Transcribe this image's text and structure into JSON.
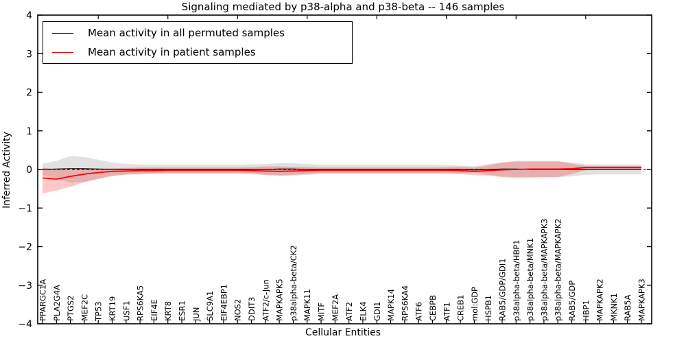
{
  "colors": {
    "permuted_line": "#000000",
    "patient_line": "#ff0000",
    "permuted_band": "rgba(120,120,120,0.22)",
    "patient_band": "rgba(255,0,0,0.22)",
    "axis": "#000000"
  },
  "legend": {
    "items": [
      {
        "label": "Mean activity in all permuted samples",
        "color": "#000000"
      },
      {
        "label": "Mean activity in patient samples",
        "color": "#ff0000"
      }
    ]
  },
  "chart_data": {
    "type": "line",
    "title": "Signaling mediated by p38-alpha and p38-beta -- 146 samples",
    "xlabel": "Cellular Entities",
    "ylabel": "Inferred Activity",
    "ylim": [
      -4,
      4
    ],
    "ytick_values": [
      4,
      3,
      2,
      1,
      0,
      -1,
      -2,
      -3,
      -4
    ],
    "ytick_labels": [
      "4",
      "3",
      "2",
      "1",
      "0",
      "−1",
      "−2",
      "−3",
      "−4"
    ],
    "grid": false,
    "legend_position": "upper left",
    "zero_line": 0,
    "categories": [
      "PPARGC1A",
      "PLA2G4A",
      "PTGS2",
      "MEF2C",
      "TP53",
      "KRT19",
      "USF1",
      "RPS6KA5",
      "EIF4E",
      "KRT8",
      "ESR1",
      "JUN",
      "SLC9A1",
      "EIF4EBP1",
      "NOS2",
      "DDIT3",
      "ATF2/c-Jun",
      "MAPKAPK5",
      "p38alpha-beta/CK2",
      "MAPK11",
      "MITF",
      "MEF2A",
      "ATF2",
      "ELK4",
      "GDI1",
      "MAPK14",
      "RPS6KA4",
      "ATF6",
      "CEBPB",
      "ATF1",
      "CREB1",
      "mol:GDP",
      "HSPB1",
      "RAB5/GDP/GDI1",
      "p38alpha-beta/HBP1",
      "p38alpha-beta/MNK1",
      "p38alpha-beta/MAPKAPK3",
      "p38alpha-beta/MAPKAPK2",
      "RAB5/GDP",
      "HBP1",
      "MAPKAPK2",
      "MKNK1",
      "RAB5A",
      "MAPKAPK3"
    ],
    "series": [
      {
        "name": "Mean activity in all permuted samples",
        "color": "#000000",
        "values": [
          0.0,
          0.01,
          0.02,
          0.02,
          0.01,
          0.0,
          0.0,
          0.0,
          0.0,
          0.0,
          0.0,
          0.0,
          0.0,
          0.0,
          0.0,
          0.0,
          0.0,
          0.01,
          0.01,
          0.0,
          0.0,
          0.0,
          0.0,
          0.0,
          0.0,
          0.0,
          0.0,
          0.0,
          0.0,
          0.0,
          0.0,
          -0.01,
          0.0,
          0.01,
          0.01,
          0.0,
          0.0,
          0.0,
          0.0,
          0.0,
          0.0,
          0.0,
          0.0,
          0.0
        ]
      },
      {
        "name": "Mean activity in patient samples",
        "color": "#ff0000",
        "values": [
          -0.22,
          -0.25,
          -0.18,
          -0.12,
          -0.08,
          -0.05,
          -0.04,
          -0.03,
          -0.03,
          -0.02,
          -0.02,
          -0.02,
          -0.02,
          -0.02,
          -0.02,
          -0.03,
          -0.04,
          -0.05,
          -0.04,
          -0.03,
          -0.02,
          -0.02,
          -0.02,
          -0.02,
          -0.02,
          -0.02,
          -0.02,
          -0.02,
          -0.02,
          -0.02,
          -0.03,
          -0.05,
          -0.03,
          -0.01,
          0.0,
          0.01,
          0.01,
          0.01,
          0.02,
          0.05,
          0.05,
          0.05,
          0.05,
          0.05
        ]
      }
    ],
    "bands": [
      {
        "name": "permuted-range",
        "color": "rgba(120,120,120,0.22)",
        "upper": [
          0.15,
          0.22,
          0.35,
          0.32,
          0.25,
          0.18,
          0.14,
          0.13,
          0.12,
          0.12,
          0.12,
          0.12,
          0.12,
          0.12,
          0.12,
          0.13,
          0.14,
          0.16,
          0.16,
          0.14,
          0.12,
          0.12,
          0.12,
          0.12,
          0.12,
          0.12,
          0.12,
          0.12,
          0.12,
          0.11,
          0.1,
          0.08,
          0.14,
          0.18,
          0.2,
          0.2,
          0.2,
          0.2,
          0.18,
          0.14,
          0.13,
          0.13,
          0.13,
          0.13
        ],
        "lower": [
          -0.15,
          -0.22,
          -0.35,
          -0.32,
          -0.25,
          -0.18,
          -0.14,
          -0.13,
          -0.12,
          -0.12,
          -0.12,
          -0.12,
          -0.12,
          -0.12,
          -0.12,
          -0.13,
          -0.14,
          -0.16,
          -0.16,
          -0.14,
          -0.12,
          -0.12,
          -0.12,
          -0.12,
          -0.12,
          -0.12,
          -0.12,
          -0.12,
          -0.12,
          -0.11,
          -0.1,
          -0.08,
          -0.14,
          -0.18,
          -0.2,
          -0.2,
          -0.2,
          -0.2,
          -0.18,
          -0.14,
          -0.13,
          -0.13,
          -0.13,
          -0.13
        ]
      },
      {
        "name": "patient-range",
        "color": "rgba(255,0,0,0.22)",
        "upper": [
          0.05,
          0.0,
          -0.02,
          0.0,
          0.02,
          0.03,
          0.04,
          0.05,
          0.05,
          0.05,
          0.05,
          0.05,
          0.05,
          0.05,
          0.05,
          0.06,
          0.08,
          0.08,
          0.07,
          0.06,
          0.05,
          0.05,
          0.05,
          0.05,
          0.05,
          0.05,
          0.05,
          0.05,
          0.05,
          0.06,
          0.07,
          0.05,
          0.1,
          0.18,
          0.22,
          0.22,
          0.22,
          0.22,
          0.15,
          0.09,
          0.09,
          0.09,
          0.09,
          0.09
        ],
        "lower": [
          -0.62,
          -0.55,
          -0.45,
          -0.33,
          -0.24,
          -0.16,
          -0.13,
          -0.11,
          -0.1,
          -0.09,
          -0.09,
          -0.09,
          -0.09,
          -0.09,
          -0.09,
          -0.1,
          -0.14,
          -0.16,
          -0.14,
          -0.12,
          -0.09,
          -0.09,
          -0.09,
          -0.09,
          -0.09,
          -0.09,
          -0.09,
          -0.09,
          -0.09,
          -0.1,
          -0.12,
          -0.15,
          -0.16,
          -0.2,
          -0.22,
          -0.21,
          -0.2,
          -0.2,
          -0.12,
          -0.02,
          -0.01,
          -0.01,
          -0.01,
          -0.01
        ]
      }
    ]
  }
}
